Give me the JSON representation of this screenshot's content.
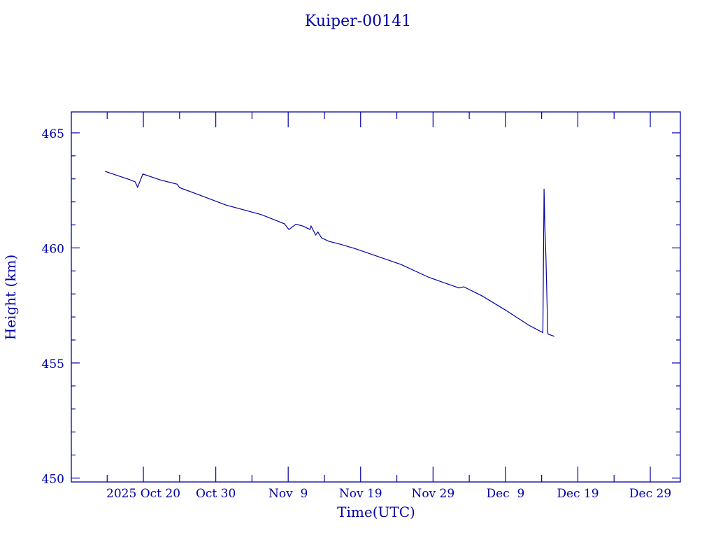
{
  "chart_data": {
    "type": "line",
    "title": "Kuiper-00141",
    "xlabel": "Time(UTC)",
    "ylabel": "Height (km)",
    "x_unit": "days since 2025-10-01 00:00 UTC",
    "xlim": [
      9.05,
      93.15
    ],
    "ylim": [
      449.83,
      465.91
    ],
    "x_ticks": [
      {
        "value": 19,
        "label": "2025 Oct 20"
      },
      {
        "value": 29,
        "label": "Oct 30"
      },
      {
        "value": 39,
        "label": "Nov  9"
      },
      {
        "value": 49,
        "label": "Nov 19"
      },
      {
        "value": 59,
        "label": "Nov 29"
      },
      {
        "value": 69,
        "label": "Dec  9"
      },
      {
        "value": 79,
        "label": "Dec 19"
      },
      {
        "value": 89,
        "label": "Dec 29"
      }
    ],
    "x_minor_step": 5,
    "y_ticks": [
      {
        "value": 450,
        "label": "450"
      },
      {
        "value": 455,
        "label": "455"
      },
      {
        "value": 460,
        "label": "460"
      },
      {
        "value": 465,
        "label": "465"
      }
    ],
    "y_minor_step": 1,
    "grid": false,
    "color": "#0000a8",
    "series": [
      {
        "name": "Kuiper-00141",
        "x": [
          13.69,
          16.9,
          17.87,
          18.2,
          18.93,
          21.4,
          23.66,
          24.0,
          26.56,
          30.42,
          35.25,
          38.47,
          39.1,
          40.07,
          41.04,
          42.0,
          42.16,
          42.8,
          43.1,
          43.6,
          44.6,
          46.2,
          48.13,
          51.35,
          54.57,
          58.43,
          62.6,
          63.24,
          65.8,
          69.0,
          72.25,
          74.17,
          74.26,
          74.33,
          74.45,
          74.58,
          74.68,
          74.77,
          74.83,
          74.9,
          75.76
        ],
        "y": [
          463.33,
          462.99,
          462.87,
          462.64,
          463.21,
          462.95,
          462.77,
          462.62,
          462.32,
          461.86,
          461.45,
          461.05,
          460.8,
          461.03,
          460.95,
          460.8,
          460.95,
          460.56,
          460.69,
          460.44,
          460.29,
          460.16,
          459.98,
          459.63,
          459.28,
          458.72,
          458.26,
          458.31,
          457.91,
          457.3,
          456.64,
          456.32,
          460.0,
          462.57,
          460.9,
          459.68,
          458.47,
          457.31,
          456.34,
          456.25,
          456.16
        ]
      }
    ]
  }
}
